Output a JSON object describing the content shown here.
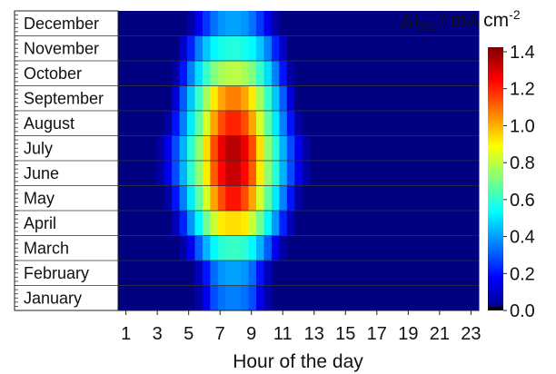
{
  "chart_data": {
    "type": "heatmap",
    "title": "",
    "xlabel": "Hour of the day",
    "ylabel": "",
    "x_ticks": [
      "1",
      "3",
      "5",
      "7",
      "9",
      "11",
      "13",
      "15",
      "17",
      "19",
      "21",
      "23"
    ],
    "x_range": [
      0.5,
      23.5
    ],
    "months": [
      "January",
      "February",
      "March",
      "April",
      "May",
      "June",
      "July",
      "August",
      "September",
      "October",
      "November",
      "December"
    ],
    "colorbar": {
      "label_delta": "ΔI",
      "label_sub": "SC",
      "label_unit": "/ mA cm",
      "label_exp": "-2",
      "range": [
        0.0,
        1.4
      ],
      "ticks": [
        "1.4",
        "1.2",
        "1.0",
        "0.8",
        "0.6",
        "0.4",
        "0.2",
        "0.0"
      ],
      "colormap": "jet"
    },
    "values": [
      [
        0,
        0,
        0,
        0,
        0,
        0,
        0,
        0,
        0,
        0,
        0.05,
        0.15,
        0.28,
        0.33,
        0.35,
        0.35,
        0.33,
        0.28,
        0.15,
        0.05,
        0,
        0,
        0,
        0,
        0,
        0,
        0,
        0,
        0,
        0,
        0,
        0,
        0,
        0,
        0,
        0,
        0,
        0,
        0,
        0,
        0,
        0,
        0,
        0,
        0,
        0,
        0
      ],
      [
        0,
        0,
        0,
        0,
        0,
        0,
        0,
        0,
        0,
        0,
        0.08,
        0.2,
        0.32,
        0.38,
        0.4,
        0.4,
        0.38,
        0.32,
        0.2,
        0.08,
        0,
        0,
        0,
        0,
        0,
        0,
        0,
        0,
        0,
        0,
        0,
        0,
        0,
        0,
        0,
        0,
        0,
        0,
        0,
        0,
        0,
        0,
        0,
        0,
        0,
        0,
        0
      ],
      [
        0,
        0,
        0,
        0,
        0,
        0,
        0,
        0,
        0.05,
        0.15,
        0.3,
        0.42,
        0.52,
        0.58,
        0.6,
        0.6,
        0.58,
        0.52,
        0.42,
        0.3,
        0.15,
        0.05,
        0,
        0,
        0,
        0,
        0,
        0,
        0,
        0,
        0,
        0,
        0,
        0,
        0,
        0,
        0,
        0,
        0,
        0,
        0,
        0,
        0,
        0,
        0,
        0,
        0
      ],
      [
        0,
        0,
        0,
        0,
        0,
        0,
        0,
        0.08,
        0.22,
        0.38,
        0.52,
        0.68,
        0.8,
        0.9,
        0.92,
        0.92,
        0.9,
        0.8,
        0.68,
        0.52,
        0.38,
        0.22,
        0.08,
        0,
        0,
        0,
        0,
        0,
        0,
        0,
        0,
        0,
        0,
        0,
        0,
        0,
        0,
        0,
        0,
        0,
        0,
        0,
        0,
        0,
        0,
        0,
        0
      ],
      [
        0,
        0,
        0,
        0,
        0,
        0,
        0.05,
        0.2,
        0.35,
        0.5,
        0.65,
        0.82,
        1.0,
        1.12,
        1.2,
        1.2,
        1.12,
        1.0,
        0.82,
        0.65,
        0.5,
        0.35,
        0.2,
        0.05,
        0,
        0,
        0,
        0,
        0,
        0,
        0,
        0,
        0,
        0,
        0,
        0,
        0,
        0,
        0,
        0,
        0,
        0,
        0,
        0,
        0,
        0,
        0
      ],
      [
        0,
        0,
        0,
        0,
        0,
        0.05,
        0.15,
        0.28,
        0.42,
        0.58,
        0.72,
        0.9,
        1.1,
        1.22,
        1.3,
        1.3,
        1.22,
        1.1,
        0.9,
        0.72,
        0.58,
        0.42,
        0.28,
        0.15,
        0.05,
        0,
        0,
        0,
        0,
        0,
        0,
        0,
        0,
        0,
        0,
        0,
        0,
        0,
        0,
        0,
        0,
        0,
        0,
        0,
        0,
        0,
        0
      ],
      [
        0,
        0,
        0,
        0,
        0,
        0.05,
        0.15,
        0.28,
        0.42,
        0.58,
        0.72,
        0.92,
        1.12,
        1.25,
        1.32,
        1.32,
        1.25,
        1.12,
        0.92,
        0.72,
        0.58,
        0.42,
        0.28,
        0.15,
        0.05,
        0,
        0,
        0,
        0,
        0,
        0,
        0,
        0,
        0,
        0,
        0,
        0,
        0,
        0,
        0,
        0,
        0,
        0,
        0,
        0,
        0,
        0
      ],
      [
        0,
        0,
        0,
        0,
        0,
        0,
        0.05,
        0.2,
        0.35,
        0.5,
        0.65,
        0.82,
        1.0,
        1.12,
        1.18,
        1.18,
        1.12,
        1.0,
        0.82,
        0.65,
        0.5,
        0.35,
        0.2,
        0.05,
        0,
        0,
        0,
        0,
        0,
        0,
        0,
        0,
        0,
        0,
        0,
        0,
        0,
        0,
        0,
        0,
        0,
        0,
        0,
        0,
        0,
        0,
        0
      ],
      [
        0,
        0,
        0,
        0,
        0,
        0,
        0,
        0.12,
        0.3,
        0.45,
        0.6,
        0.75,
        0.9,
        1.0,
        1.05,
        1.05,
        1.0,
        0.9,
        0.75,
        0.6,
        0.45,
        0.3,
        0.12,
        0,
        0,
        0,
        0,
        0,
        0,
        0,
        0,
        0,
        0,
        0,
        0,
        0,
        0,
        0,
        0,
        0,
        0,
        0,
        0,
        0,
        0,
        0,
        0
      ],
      [
        0,
        0,
        0,
        0,
        0,
        0,
        0,
        0.05,
        0.2,
        0.35,
        0.48,
        0.6,
        0.7,
        0.75,
        0.78,
        0.78,
        0.75,
        0.7,
        0.6,
        0.48,
        0.35,
        0.2,
        0.05,
        0,
        0,
        0,
        0,
        0,
        0,
        0,
        0,
        0,
        0,
        0,
        0,
        0,
        0,
        0,
        0,
        0,
        0,
        0,
        0,
        0,
        0,
        0,
        0
      ],
      [
        0,
        0,
        0,
        0,
        0,
        0,
        0,
        0,
        0.1,
        0.22,
        0.35,
        0.45,
        0.52,
        0.55,
        0.57,
        0.57,
        0.55,
        0.52,
        0.45,
        0.35,
        0.22,
        0.1,
        0,
        0,
        0,
        0,
        0,
        0,
        0,
        0,
        0,
        0,
        0,
        0,
        0,
        0,
        0,
        0,
        0,
        0,
        0,
        0,
        0,
        0,
        0,
        0,
        0
      ],
      [
        0,
        0,
        0,
        0,
        0,
        0,
        0,
        0,
        0,
        0.05,
        0.15,
        0.25,
        0.33,
        0.38,
        0.4,
        0.4,
        0.38,
        0.33,
        0.25,
        0.15,
        0.05,
        0,
        0,
        0,
        0,
        0,
        0,
        0,
        0,
        0,
        0,
        0,
        0,
        0,
        0,
        0,
        0,
        0,
        0,
        0,
        0,
        0,
        0,
        0,
        0,
        0,
        0
      ]
    ]
  }
}
